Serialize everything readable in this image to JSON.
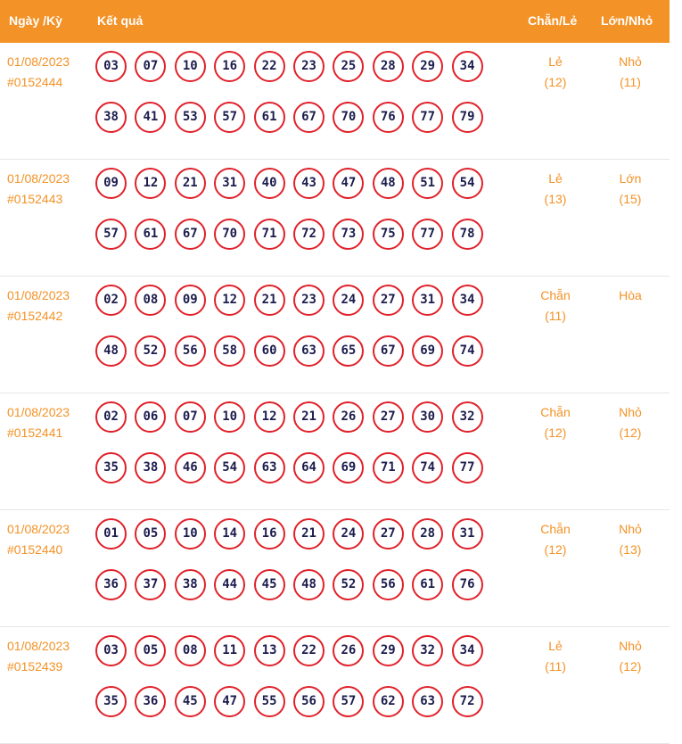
{
  "header": {
    "date_label": "Ngày /Kỳ",
    "result_label": "Kết quả",
    "chanle_label": "Chẵn/Lẻ",
    "lonnho_label": "Lớn/Nhỏ"
  },
  "colors": {
    "accent": "#f39226",
    "ball_border": "#e0212a",
    "ball_text": "#1c1c4e"
  },
  "draws": [
    {
      "date": "01/08/2023",
      "id": "#0152444",
      "numbers": [
        "03",
        "07",
        "10",
        "16",
        "22",
        "23",
        "25",
        "28",
        "29",
        "34",
        "38",
        "41",
        "53",
        "57",
        "61",
        "67",
        "70",
        "76",
        "77",
        "79"
      ],
      "chanle": "Lẻ",
      "chanle_count": "(12)",
      "lonnho": "Nhỏ",
      "lonnho_count": "(11)"
    },
    {
      "date": "01/08/2023",
      "id": "#0152443",
      "numbers": [
        "09",
        "12",
        "21",
        "31",
        "40",
        "43",
        "47",
        "48",
        "51",
        "54",
        "57",
        "61",
        "67",
        "70",
        "71",
        "72",
        "73",
        "75",
        "77",
        "78"
      ],
      "chanle": "Lẻ",
      "chanle_count": "(13)",
      "lonnho": "Lớn",
      "lonnho_count": "(15)"
    },
    {
      "date": "01/08/2023",
      "id": "#0152442",
      "numbers": [
        "02",
        "08",
        "09",
        "12",
        "21",
        "23",
        "24",
        "27",
        "31",
        "34",
        "48",
        "52",
        "56",
        "58",
        "60",
        "63",
        "65",
        "67",
        "69",
        "74"
      ],
      "chanle": "Chẵn",
      "chanle_count": "(11)",
      "lonnho": "Hòa",
      "lonnho_count": ""
    },
    {
      "date": "01/08/2023",
      "id": "#0152441",
      "numbers": [
        "02",
        "06",
        "07",
        "10",
        "12",
        "21",
        "26",
        "27",
        "30",
        "32",
        "35",
        "38",
        "46",
        "54",
        "63",
        "64",
        "69",
        "71",
        "74",
        "77"
      ],
      "chanle": "Chẵn",
      "chanle_count": "(12)",
      "lonnho": "Nhỏ",
      "lonnho_count": "(12)"
    },
    {
      "date": "01/08/2023",
      "id": "#0152440",
      "numbers": [
        "01",
        "05",
        "10",
        "14",
        "16",
        "21",
        "24",
        "27",
        "28",
        "31",
        "36",
        "37",
        "38",
        "44",
        "45",
        "48",
        "52",
        "56",
        "61",
        "76"
      ],
      "chanle": "Chẵn",
      "chanle_count": "(12)",
      "lonnho": "Nhỏ",
      "lonnho_count": "(13)"
    },
    {
      "date": "01/08/2023",
      "id": "#0152439",
      "numbers": [
        "03",
        "05",
        "08",
        "11",
        "13",
        "22",
        "26",
        "29",
        "32",
        "34",
        "35",
        "36",
        "45",
        "47",
        "55",
        "56",
        "57",
        "62",
        "63",
        "72"
      ],
      "chanle": "Lẻ",
      "chanle_count": "(11)",
      "lonnho": "Nhỏ",
      "lonnho_count": "(12)"
    }
  ]
}
